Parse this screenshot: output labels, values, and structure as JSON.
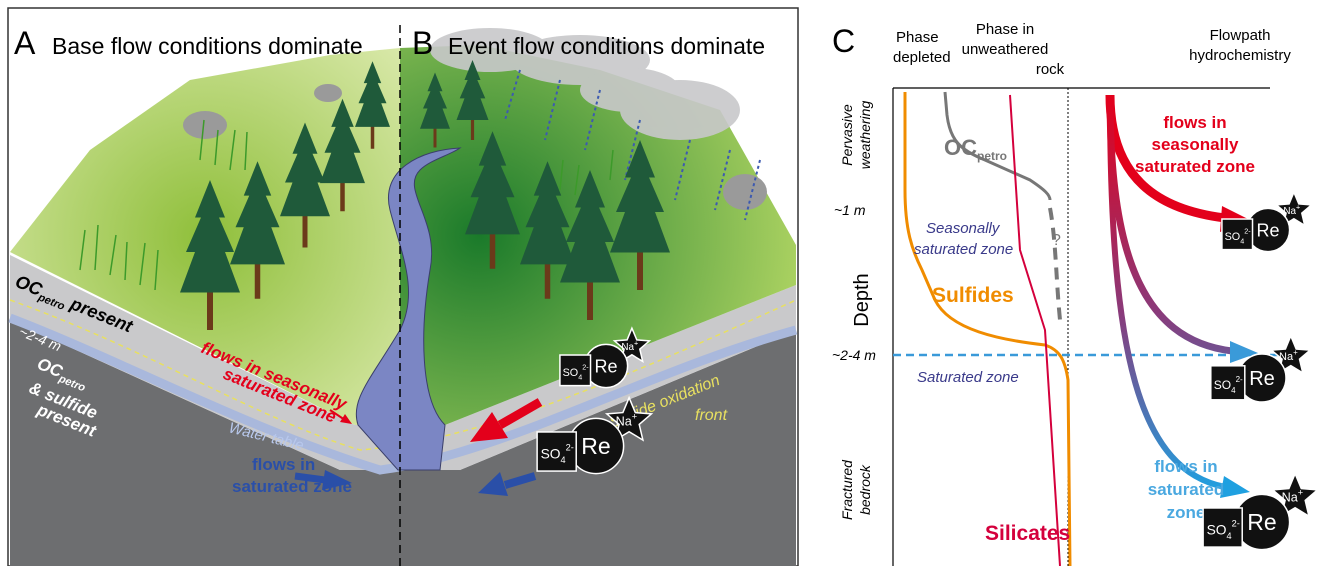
{
  "panel_a": {
    "letter": "A",
    "title": "Base flow conditions dominate",
    "oc_present": {
      "main": "OC",
      "sub": "petro",
      "rest": "present"
    },
    "depth": "~2-4 m",
    "oc_sulfide": {
      "main": "OC",
      "sub": "petro",
      "line2": "& sulfide",
      "line3": "present"
    },
    "flows_seasonal": [
      "flows in seasonally",
      "saturated zone"
    ],
    "water_table": "Water table",
    "flows_saturated": [
      "flows in",
      "saturated zone"
    ]
  },
  "panel_b": {
    "letter": "B",
    "title": "Event flow conditions dominate",
    "sulfide_front": [
      "Sulfide oxidation",
      "front"
    ]
  },
  "ions": {
    "re": "Re",
    "na": "Na",
    "na_charge": "+",
    "so": "SO",
    "so_sub": "4",
    "so_charge": "2-"
  },
  "panel_c": {
    "letter": "C",
    "phase_depleted": [
      "Phase",
      "depleted"
    ],
    "phase_unweathered": [
      "Phase in",
      "unweathered",
      "rock"
    ],
    "flowpath": [
      "Flowpath",
      "hydrochemistry"
    ],
    "pervasive": [
      "Pervasive",
      "weathering"
    ],
    "one_m": "~1 m",
    "depth": "Depth",
    "two_four": "~2-4 m",
    "fractured": [
      "Fractured",
      "bedrock"
    ],
    "oc": {
      "main": "OC",
      "sub": "petro"
    },
    "seasonal_zone": [
      "Seasonally",
      "saturated zone"
    ],
    "sulfides": "Sulfides",
    "question": "?",
    "saturated_zone": "Saturated zone",
    "silicates": "Silicates",
    "flows_seasonal": [
      "flows in",
      "seasonally",
      "saturated zone"
    ],
    "flows_saturated": [
      "flows in",
      "saturated",
      "zone"
    ]
  }
}
